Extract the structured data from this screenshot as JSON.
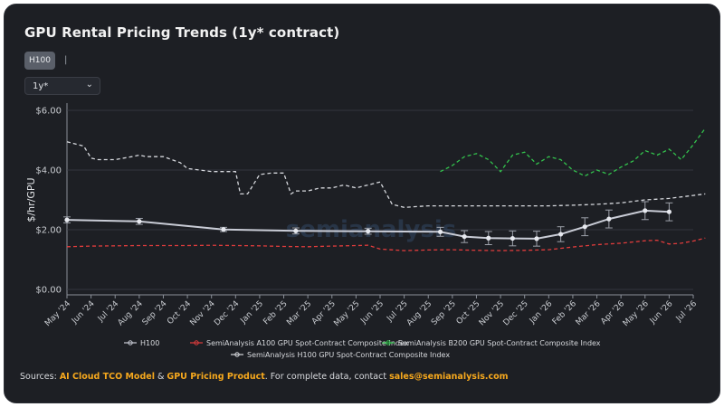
{
  "title": "GPU Rental Pricing Trends (1y* contract)",
  "controls": {
    "tab_label": "H100",
    "tab_separator": "|",
    "select_value": "1y*"
  },
  "footer": {
    "prefix": "Sources: ",
    "link1": "AI Cloud TCO Model",
    "amp": " & ",
    "link2": "GPU Pricing Product",
    "middle": ". For complete data, contact ",
    "email": "sales@semianalysis.com"
  },
  "watermark": "semianalysis",
  "colors": {
    "h100": "#c9ccd6",
    "a100": "#e03c3c",
    "b200": "#33c24d",
    "h100_index": "#d6d8dd",
    "background": "#1d1f24",
    "accent": "#f6a81d"
  },
  "chart_data": {
    "type": "line",
    "ylabel": "$/hr/GPU",
    "ylim": [
      0,
      6
    ],
    "y_ticks": [
      "$0.00",
      "$2.00",
      "$4.00",
      "$6.00"
    ],
    "x_ticks": [
      "May '24",
      "Jun '24",
      "Jul '24",
      "Aug '24",
      "Sep '24",
      "Oct '24",
      "Nov '24",
      "Dec '24",
      "Jan '25",
      "Feb '25",
      "Mar '25",
      "Apr '25",
      "May '25",
      "Jun '25",
      "Jul '25",
      "Aug '25",
      "Sep '25",
      "Oct '25",
      "Nov '25",
      "Dec '25",
      "Jan '26",
      "Feb '26",
      "Mar '26",
      "Apr '26",
      "May '26",
      "Jun '26",
      "Jul '26"
    ],
    "grid": true,
    "legend_position": "bottom",
    "series": [
      {
        "name": "H100",
        "style": "solid-markers-errorbars",
        "x": [
          0,
          3,
          6.5,
          9.5,
          12.5,
          15.5,
          16.5,
          17.5,
          18.5,
          19.5,
          20.5,
          21.5,
          22.5,
          24,
          25
        ],
        "values": [
          2.33,
          2.28,
          2.01,
          1.96,
          1.95,
          1.93,
          1.77,
          1.72,
          1.71,
          1.7,
          1.85,
          2.1,
          2.36,
          2.64,
          2.6
        ],
        "errors": [
          0.1,
          0.1,
          0.07,
          0.1,
          0.1,
          0.15,
          0.2,
          0.22,
          0.25,
          0.25,
          0.25,
          0.3,
          0.3,
          0.3,
          0.3
        ]
      },
      {
        "name": "SemiAnalysis A100 GPU Spot-Contract Composite Index",
        "style": "dashed",
        "x": [
          0,
          1,
          2,
          3,
          4,
          5,
          6,
          7,
          8,
          9,
          10,
          11,
          12,
          12.5,
          13,
          14,
          15,
          16,
          17,
          18,
          19,
          20,
          21,
          22,
          23,
          24,
          24.5,
          25,
          25.5,
          26,
          26.5
        ],
        "values": [
          1.43,
          1.45,
          1.46,
          1.47,
          1.47,
          1.47,
          1.48,
          1.47,
          1.46,
          1.44,
          1.43,
          1.45,
          1.47,
          1.48,
          1.35,
          1.3,
          1.32,
          1.33,
          1.31,
          1.3,
          1.31,
          1.33,
          1.42,
          1.5,
          1.55,
          1.63,
          1.65,
          1.52,
          1.55,
          1.62,
          1.72
        ]
      },
      {
        "name": "SemiAnalysis B200 GPU Spot-Contract Composite Index",
        "style": "dashed",
        "x": [
          15.5,
          16,
          16.5,
          17,
          17.5,
          18,
          18.5,
          19,
          19.5,
          20,
          20.5,
          21,
          21.5,
          22,
          22.5,
          23,
          23.5,
          24,
          24.5,
          25,
          25.5,
          26,
          26.5
        ],
        "values": [
          3.95,
          4.15,
          4.45,
          4.55,
          4.35,
          3.95,
          4.5,
          4.6,
          4.2,
          4.45,
          4.35,
          4.0,
          3.8,
          4.0,
          3.85,
          4.1,
          4.3,
          4.65,
          4.5,
          4.7,
          4.35,
          4.85,
          5.4
        ]
      },
      {
        "name": "SemiAnalysis H100 GPU Spot-Contract Composite Index",
        "style": "dashed",
        "x": [
          0,
          0.7,
          1,
          1.3,
          2,
          2.7,
          3,
          3.3,
          4,
          4.7,
          5,
          5.5,
          6,
          6.5,
          7,
          7.2,
          7.5,
          8,
          8.5,
          9,
          9.3,
          9.5,
          10,
          10.5,
          11,
          11.5,
          12,
          12.5,
          13,
          13.5,
          14,
          15,
          16,
          17,
          18,
          19,
          20,
          21,
          22,
          23,
          24,
          25,
          26,
          26.5
        ],
        "values": [
          4.95,
          4.8,
          4.4,
          4.35,
          4.35,
          4.45,
          4.5,
          4.45,
          4.45,
          4.25,
          4.05,
          4.0,
          3.95,
          3.95,
          3.95,
          3.2,
          3.2,
          3.85,
          3.9,
          3.9,
          3.2,
          3.3,
          3.3,
          3.4,
          3.4,
          3.5,
          3.4,
          3.5,
          3.6,
          2.85,
          2.75,
          2.8,
          2.8,
          2.8,
          2.8,
          2.8,
          2.8,
          2.82,
          2.85,
          2.9,
          3.0,
          3.05,
          3.15,
          3.2
        ]
      }
    ]
  }
}
